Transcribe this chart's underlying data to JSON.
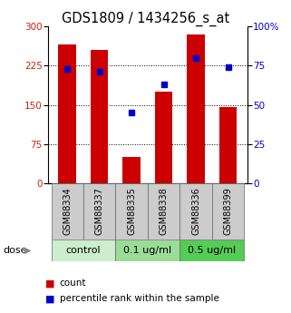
{
  "title": "GDS1809 / 1434256_s_at",
  "categories": [
    "GSM88334",
    "GSM88337",
    "GSM88335",
    "GSM88338",
    "GSM88336",
    "GSM88399"
  ],
  "bar_heights": [
    265,
    255,
    50,
    175,
    285,
    145
  ],
  "percentile_ranks": [
    73,
    71,
    45,
    63,
    80,
    74
  ],
  "bar_color": "#cc0000",
  "marker_color": "#0000cc",
  "ylim_left": [
    0,
    300
  ],
  "ylim_right": [
    0,
    100
  ],
  "left_yticks": [
    0,
    75,
    150,
    225,
    300
  ],
  "right_yticks": [
    0,
    25,
    50,
    75,
    100
  ],
  "right_yticklabels": [
    "0",
    "25",
    "50",
    "75",
    "100%"
  ],
  "groups": [
    {
      "label": "control",
      "indices": [
        0,
        1
      ],
      "color": "#cceecc"
    },
    {
      "label": "0.1 ug/ml",
      "indices": [
        2,
        3
      ],
      "color": "#99dd99"
    },
    {
      "label": "0.5 ug/ml",
      "indices": [
        4,
        5
      ],
      "color": "#55cc55"
    }
  ],
  "dose_label": "dose",
  "legend_count_label": "count",
  "legend_percentile_label": "percentile rank within the sample",
  "title_fontsize": 10.5,
  "tick_fontsize": 7.5,
  "label_fontsize": 7,
  "group_fontsize": 8,
  "bar_width": 0.55,
  "background_color": "#ffffff"
}
